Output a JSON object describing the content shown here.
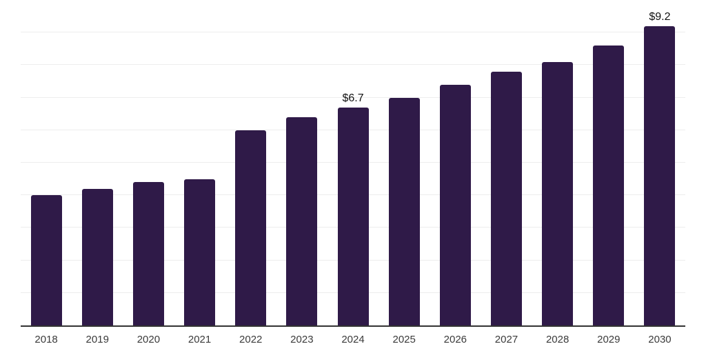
{
  "colors": {
    "background": "#ffffff",
    "bar": "#2f1a48",
    "gridline": "#ededed",
    "axis_line": "#333333",
    "tick_label": "#3a3a3a",
    "data_label": "#111111"
  },
  "chart_data": {
    "type": "bar",
    "title": "",
    "xlabel": "",
    "ylabel": "",
    "categories": [
      "2018",
      "2019",
      "2020",
      "2021",
      "2022",
      "2023",
      "2024",
      "2025",
      "2026",
      "2027",
      "2028",
      "2029",
      "2030"
    ],
    "values": [
      4.0,
      4.2,
      4.4,
      4.5,
      6.0,
      6.4,
      6.7,
      7.0,
      7.4,
      7.8,
      8.1,
      8.6,
      9.2
    ],
    "value_unit_prefix": "$",
    "ylim": [
      0,
      10
    ],
    "gridline_step": 1,
    "grid": "horizontal",
    "legend": "none",
    "y_axis_labels_visible": false,
    "data_labels": [
      {
        "category": "2024",
        "text": "$6.7"
      },
      {
        "category": "2030",
        "text": "$9.2"
      }
    ]
  }
}
